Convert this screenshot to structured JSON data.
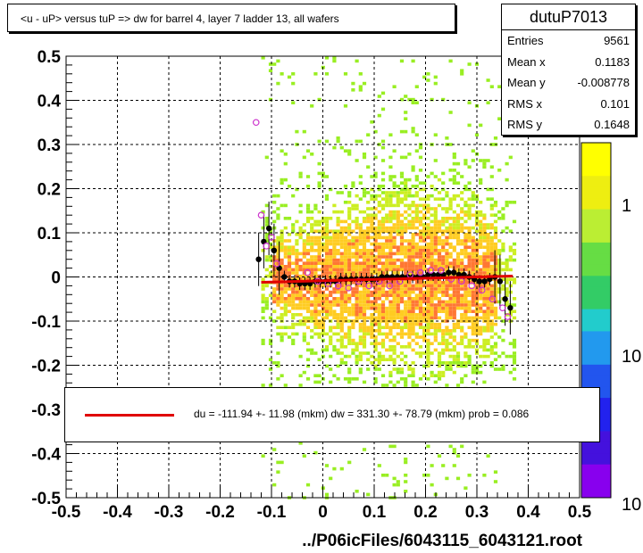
{
  "chart_data": {
    "type": "scatter",
    "title": "<u - uP>       versus  tuP =>  dw for barrel 4, layer 7 ladder 13, all wafers",
    "xlabel": "../P06icFiles/6043115_6043121.root",
    "ylabel": "",
    "xlim": [
      -0.5,
      0.5
    ],
    "ylim": [
      -0.5,
      0.5
    ],
    "x_ticks": [
      "-0.5",
      "-0.4",
      "-0.3",
      "-0.2",
      "-0.1",
      "0",
      "0.1",
      "0.2",
      "0.3",
      "0.4",
      "0.5"
    ],
    "y_ticks": [
      "-0.5",
      "-0.4",
      "-0.3",
      "-0.2",
      "-0.1",
      "0",
      "0.1",
      "0.2",
      "0.3",
      "0.4",
      "0.5"
    ],
    "grid": true,
    "colorbar_labels": [
      "1",
      "10",
      "10"
    ],
    "colors": {
      "fit_line": "#e00000",
      "profile_mean": "#000000",
      "profile_alt": "#cc33cc",
      "heat_low": "#99ee22",
      "heat_mid": "#ffcc22",
      "heat_high": "#ff7733"
    },
    "series": [
      {
        "name": "",
        "values_x": [
          -0.125,
          -0.115,
          -0.105,
          -0.095,
          -0.085,
          -0.075,
          -0.065,
          -0.055,
          -0.045,
          -0.035,
          -0.025,
          -0.015,
          -0.005,
          0.005,
          0.015,
          0.025,
          0.035,
          0.045,
          0.055,
          0.065,
          0.075,
          0.085,
          0.095,
          0.105,
          0.115,
          0.125,
          0.135,
          0.145,
          0.155,
          0.165,
          0.175,
          0.185,
          0.195,
          0.205,
          0.215,
          0.225,
          0.235,
          0.245,
          0.255,
          0.265,
          0.275,
          0.285,
          0.295,
          0.305,
          0.315,
          0.325,
          0.335,
          0.345,
          0.355,
          0.365
        ],
        "values_y": [
          0.04,
          0.08,
          0.11,
          0.06,
          0.02,
          0.0,
          -0.01,
          -0.01,
          -0.015,
          -0.015,
          -0.015,
          -0.01,
          -0.01,
          -0.01,
          -0.01,
          -0.01,
          -0.005,
          -0.005,
          -0.005,
          -0.005,
          -0.005,
          -0.005,
          -0.005,
          -0.005,
          0.0,
          0.0,
          0.0,
          0.0,
          0.0,
          0.0,
          0.0,
          0.0,
          0.0,
          0.005,
          0.005,
          0.005,
          0.005,
          0.01,
          0.01,
          0.005,
          0.005,
          0.0,
          -0.005,
          -0.01,
          -0.01,
          -0.005,
          0.0,
          -0.01,
          -0.05,
          -0.07
        ]
      },
      {
        "name": "",
        "values_x": [
          -0.13,
          -0.12,
          -0.11,
          -0.1,
          -0.09,
          -0.03,
          -0.01,
          0.01,
          0.03,
          0.05,
          0.07,
          0.09,
          0.11,
          0.13,
          0.15,
          0.17,
          0.19,
          0.21,
          0.23,
          0.25,
          0.27,
          0.29,
          0.31,
          0.33,
          0.35,
          0.36
        ],
        "values_y": [
          0.35,
          0.14,
          0.07,
          0.09,
          0.03,
          0.01,
          -0.01,
          -0.015,
          -0.02,
          -0.025,
          -0.01,
          -0.02,
          -0.01,
          -0.02,
          -0.01,
          0.005,
          0.01,
          0.015,
          0.015,
          -0.005,
          -0.01,
          -0.02,
          -0.03,
          -0.05,
          -0.07,
          -0.09
        ]
      }
    ],
    "fit_line": {
      "x_start": -0.12,
      "x_end": 0.37,
      "y_start": -0.012,
      "y_end": 0.002
    }
  },
  "title_box": {
    "text": "<u - uP>       versus  tuP =>  dw for barrel 4, layer 7 ladder 13, all wafers"
  },
  "stats": {
    "name": "dutuP7013",
    "rows": [
      {
        "key": "Entries",
        "value": "9561"
      },
      {
        "key": "Mean x",
        "value": "0.1183"
      },
      {
        "key": "Mean y",
        "value": "-0.008778"
      },
      {
        "key": "RMS x",
        "value": "0.101"
      },
      {
        "key": "RMS y",
        "value": "0.1648"
      }
    ]
  },
  "fit_legend": {
    "text": "du = -111.94 +- 11.98 (mkm) dw =  331.30 +- 78.79 (mkm) prob = 0.086"
  }
}
